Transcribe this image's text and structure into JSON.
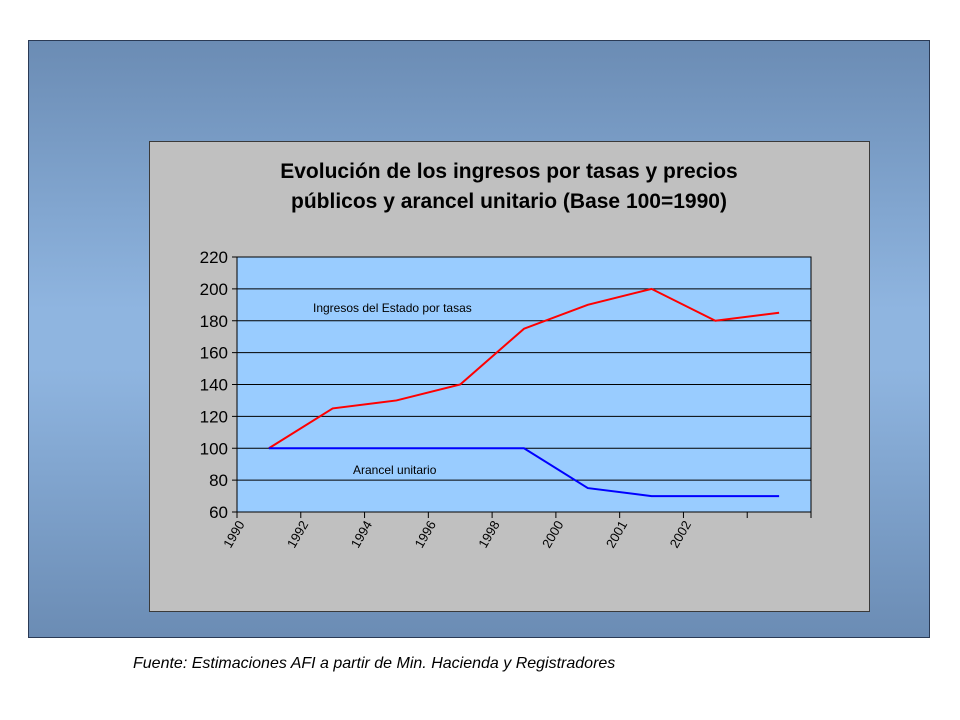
{
  "source_note": "Fuente: Estimaciones AFI a partir de Min. Hacienda y Registradores",
  "chart_data": {
    "type": "line",
    "title_lines": [
      "Evolución de los ingresos por tasas y precios",
      "públicos y arancel unitario (Base 100=1990)"
    ],
    "categories": [
      "1990",
      "1992",
      "1994",
      "1996",
      "1998",
      "2000",
      "2001",
      "2002",
      ""
    ],
    "ylim": [
      60,
      220
    ],
    "yticks": [
      60,
      80,
      100,
      120,
      140,
      160,
      180,
      200,
      220
    ],
    "grid": true,
    "plot_background": "#99ccff",
    "series": [
      {
        "name": "Ingresos del Estado por tasas",
        "color": "#ff0000",
        "values": [
          100,
          125,
          130,
          140,
          175,
          190,
          200,
          180,
          185
        ]
      },
      {
        "name": "Arancel unitario",
        "color": "#0000ff",
        "values": [
          100,
          100,
          100,
          100,
          100,
          75,
          70,
          70,
          70
        ]
      }
    ]
  }
}
